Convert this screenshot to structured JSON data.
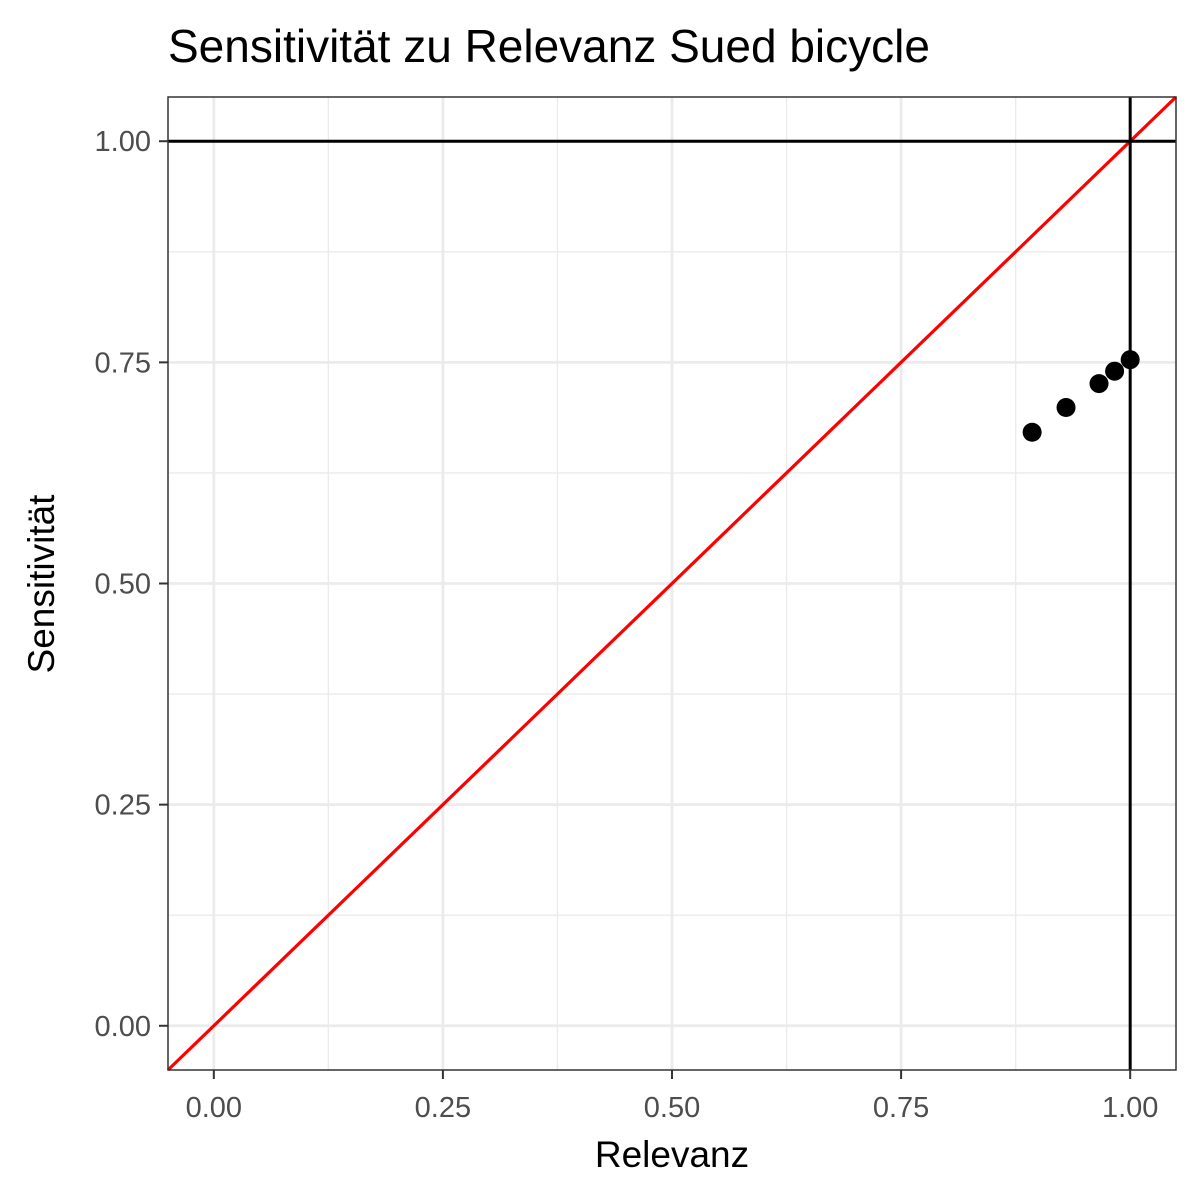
{
  "chart_data": {
    "type": "scatter",
    "title": "Sensitivität zu Relevanz Sued bicycle",
    "xlabel": "Relevanz",
    "ylabel": "Sensitivität",
    "xlim": [
      -0.05,
      1.05
    ],
    "ylim": [
      -0.05,
      1.05
    ],
    "x_ticks": [
      0,
      0.25,
      0.5,
      0.75,
      1
    ],
    "x_tick_labels": [
      "0.00",
      "0.25",
      "0.50",
      "0.75",
      "1.00"
    ],
    "y_ticks": [
      0,
      0.25,
      0.5,
      0.75,
      1
    ],
    "y_tick_labels": [
      "0.00",
      "0.25",
      "0.50",
      "0.75",
      "1.00"
    ],
    "grid": true,
    "points": [
      {
        "x": 0.893,
        "y": 0.671
      },
      {
        "x": 0.93,
        "y": 0.699
      },
      {
        "x": 0.966,
        "y": 0.726
      },
      {
        "x": 0.983,
        "y": 0.74
      },
      {
        "x": 1.0,
        "y": 0.753
      }
    ],
    "reference_lines": {
      "diagonal": {
        "slope": 1,
        "intercept": 0,
        "color": "#ff0000"
      },
      "horizontal": {
        "y": 1,
        "color": "#000000"
      },
      "vertical": {
        "x": 1,
        "color": "#000000"
      }
    },
    "point_color": "#000000"
  }
}
